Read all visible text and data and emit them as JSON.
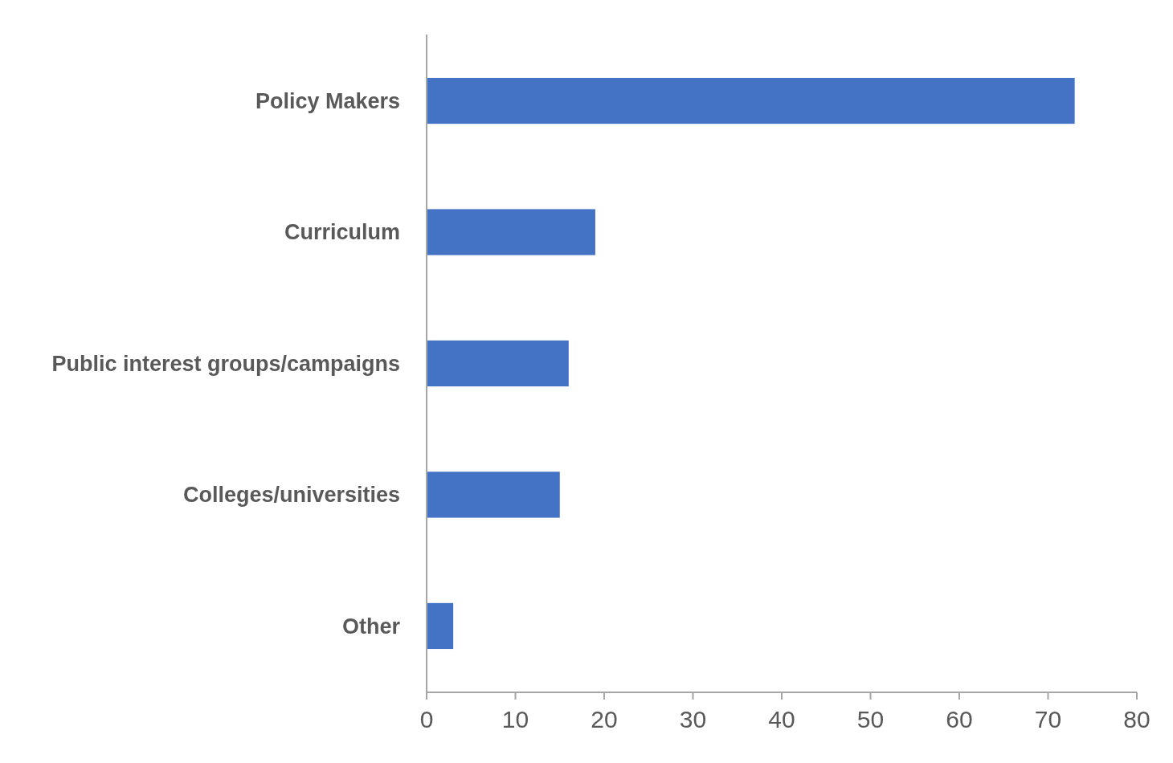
{
  "chart_data": {
    "type": "bar",
    "orientation": "horizontal",
    "categories": [
      "Policy Makers",
      "Curriculum",
      "Public interest groups/campaigns",
      "Colleges/universities",
      "Other"
    ],
    "values": [
      73,
      19,
      16,
      15,
      3
    ],
    "color": "#4472c4",
    "xlim": [
      0,
      80
    ],
    "xticks": [
      0,
      10,
      20,
      30,
      40,
      50,
      60,
      70,
      80
    ],
    "grid": false
  }
}
